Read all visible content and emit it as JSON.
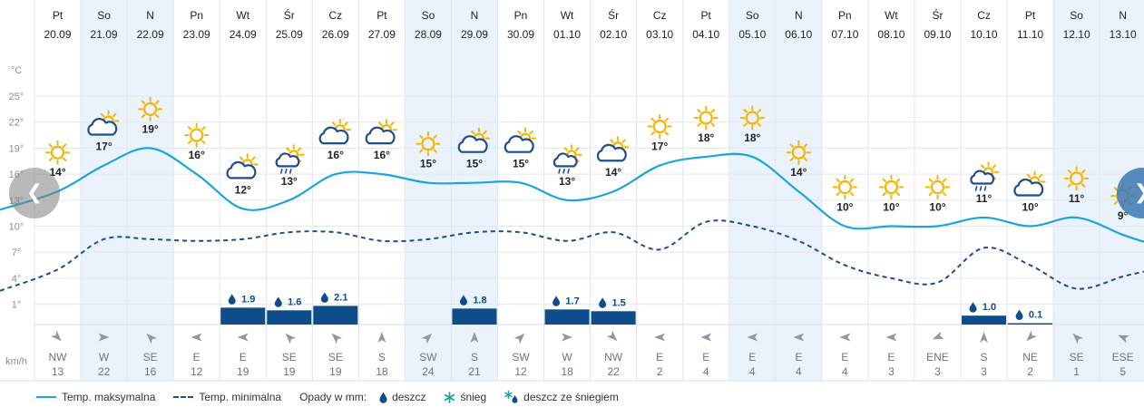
{
  "colors": {
    "max_line": "#1ba6d9",
    "min_line": "#1f4e8c",
    "rain_bar": "#0f4c8a",
    "weekend_bg": "#eaf3fc",
    "sun": "#f4b400",
    "cloud": "#1f4e8c",
    "wind_arrow": "#8f98a3"
  },
  "navigation": {
    "prev_icon": "chevron-left-icon",
    "next_icon": "chevron-right-icon"
  },
  "axis": {
    "unit_label": "°C",
    "ticks": [
      "25°",
      "22°",
      "19°",
      "16°",
      "13°",
      "10°",
      "7°",
      "4°",
      "1°"
    ],
    "tick_values": [
      25,
      22,
      19,
      16,
      13,
      10,
      7,
      4,
      1
    ],
    "ylim": [
      -1,
      28
    ],
    "wind_unit": "km/h"
  },
  "days": [
    {
      "dow": "Pt",
      "date": "20.09",
      "weekend": false,
      "icon": "sun-icon",
      "max_label": "14°",
      "wind_dir": "NW",
      "wind_speed": "13",
      "wind_deg": 315
    },
    {
      "dow": "So",
      "date": "21.09",
      "weekend": true,
      "icon": "partly-cloudy-icon",
      "max_label": "17°",
      "wind_dir": "W",
      "wind_speed": "22",
      "wind_deg": 270
    },
    {
      "dow": "N",
      "date": "22.09",
      "weekend": true,
      "icon": "sun-icon",
      "max_label": "19°",
      "wind_dir": "SE",
      "wind_speed": "16",
      "wind_deg": 135
    },
    {
      "dow": "Pn",
      "date": "23.09",
      "weekend": false,
      "icon": "sun-icon",
      "max_label": "16°",
      "wind_dir": "E",
      "wind_speed": "12",
      "wind_deg": 90
    },
    {
      "dow": "Wt",
      "date": "24.09",
      "weekend": false,
      "icon": "partly-cloudy-icon",
      "max_label": "12°",
      "wind_dir": "E",
      "wind_speed": "19",
      "wind_deg": 90
    },
    {
      "dow": "Śr",
      "date": "25.09",
      "weekend": false,
      "icon": "partly-cloudy-rain-icon",
      "max_label": "13°",
      "wind_dir": "SE",
      "wind_speed": "19",
      "wind_deg": 135
    },
    {
      "dow": "Cz",
      "date": "26.09",
      "weekend": false,
      "icon": "partly-cloudy-icon",
      "max_label": "16°",
      "wind_dir": "SE",
      "wind_speed": "19",
      "wind_deg": 135
    },
    {
      "dow": "Pt",
      "date": "27.09",
      "weekend": false,
      "icon": "partly-cloudy-icon",
      "max_label": "16°",
      "wind_dir": "S",
      "wind_speed": "18",
      "wind_deg": 180
    },
    {
      "dow": "So",
      "date": "28.09",
      "weekend": true,
      "icon": "sun-icon",
      "max_label": "15°",
      "wind_dir": "SW",
      "wind_speed": "24",
      "wind_deg": 225
    },
    {
      "dow": "N",
      "date": "29.09",
      "weekend": true,
      "icon": "partly-cloudy-icon",
      "max_label": "15°",
      "wind_dir": "S",
      "wind_speed": "21",
      "wind_deg": 180
    },
    {
      "dow": "Pn",
      "date": "30.09",
      "weekend": false,
      "icon": "partly-cloudy-icon",
      "max_label": "15°",
      "wind_dir": "SW",
      "wind_speed": "12",
      "wind_deg": 225
    },
    {
      "dow": "Wt",
      "date": "01.10",
      "weekend": false,
      "icon": "partly-cloudy-rain-icon",
      "max_label": "13°",
      "wind_dir": "W",
      "wind_speed": "18",
      "wind_deg": 270
    },
    {
      "dow": "Śr",
      "date": "02.10",
      "weekend": false,
      "icon": "partly-cloudy-icon",
      "max_label": "14°",
      "wind_dir": "NW",
      "wind_speed": "22",
      "wind_deg": 315
    },
    {
      "dow": "Cz",
      "date": "03.10",
      "weekend": false,
      "icon": "sun-icon",
      "max_label": "17°",
      "wind_dir": "E",
      "wind_speed": "2",
      "wind_deg": 90
    },
    {
      "dow": "Pt",
      "date": "04.10",
      "weekend": false,
      "icon": "sun-icon",
      "max_label": "18°",
      "wind_dir": "E",
      "wind_speed": "4",
      "wind_deg": 90
    },
    {
      "dow": "So",
      "date": "05.10",
      "weekend": true,
      "icon": "sun-icon",
      "max_label": "18°",
      "wind_dir": "E",
      "wind_speed": "4",
      "wind_deg": 90
    },
    {
      "dow": "N",
      "date": "06.10",
      "weekend": true,
      "icon": "sun-icon",
      "max_label": "14°",
      "wind_dir": "E",
      "wind_speed": "4",
      "wind_deg": 90
    },
    {
      "dow": "Pn",
      "date": "07.10",
      "weekend": false,
      "icon": "sun-icon",
      "max_label": "10°",
      "wind_dir": "E",
      "wind_speed": "4",
      "wind_deg": 90
    },
    {
      "dow": "Wt",
      "date": "08.10",
      "weekend": false,
      "icon": "sun-icon",
      "max_label": "10°",
      "wind_dir": "E",
      "wind_speed": "3",
      "wind_deg": 90
    },
    {
      "dow": "Śr",
      "date": "09.10",
      "weekend": false,
      "icon": "sun-icon",
      "max_label": "10°",
      "wind_dir": "ENE",
      "wind_speed": "3",
      "wind_deg": 67
    },
    {
      "dow": "Cz",
      "date": "10.10",
      "weekend": false,
      "icon": "partly-cloudy-rain-icon",
      "max_label": "11°",
      "wind_dir": "S",
      "wind_speed": "3",
      "wind_deg": 180
    },
    {
      "dow": "Pt",
      "date": "11.10",
      "weekend": false,
      "icon": "partly-cloudy-icon",
      "max_label": "10°",
      "wind_dir": "NE",
      "wind_speed": "2",
      "wind_deg": 45
    },
    {
      "dow": "So",
      "date": "12.10",
      "weekend": true,
      "icon": "sun-icon",
      "max_label": "11°",
      "wind_dir": "SE",
      "wind_speed": "1",
      "wind_deg": 135
    },
    {
      "dow": "N",
      "date": "13.10",
      "weekend": true,
      "icon": "sun-icon",
      "max_label": "9°",
      "wind_dir": "ESE",
      "wind_speed": "5",
      "wind_deg": 112
    }
  ],
  "legend": {
    "max_label": "Temp. maksymalna",
    "min_label": "Temp. minimalna",
    "precip_label": "Opady w mm:",
    "rain_label": "deszcz",
    "snow_label": "śnieg",
    "mixed_label": "deszcz ze śniegiem"
  },
  "chart_data": {
    "type": "line",
    "x": [
      "20.09",
      "21.09",
      "22.09",
      "23.09",
      "24.09",
      "25.09",
      "26.09",
      "27.09",
      "28.09",
      "29.09",
      "30.09",
      "01.10",
      "02.10",
      "03.10",
      "04.10",
      "05.10",
      "06.10",
      "07.10",
      "08.10",
      "09.10",
      "10.10",
      "11.10",
      "12.10",
      "13.10"
    ],
    "series": [
      {
        "name": "Temp. maksymalna",
        "values": [
          14,
          17,
          19,
          16,
          12,
          13,
          16,
          16,
          15,
          15,
          15,
          13,
          14,
          17,
          18,
          18,
          14,
          10,
          10,
          10,
          11,
          10,
          11,
          9
        ]
      },
      {
        "name": "Temp. minimalna",
        "values": [
          5,
          8.5,
          8.5,
          8.3,
          8.5,
          9.3,
          9.3,
          8.3,
          8.5,
          9.3,
          9.3,
          8.3,
          9.3,
          7.3,
          10.5,
          10,
          8.3,
          5.5,
          4,
          3.5,
          7.5,
          5.5,
          2.8,
          4.2
        ]
      }
    ],
    "precipitation": {
      "name": "Opady w mm",
      "values": [
        null,
        null,
        null,
        null,
        1.9,
        1.6,
        2.1,
        null,
        null,
        1.8,
        null,
        1.7,
        1.5,
        null,
        null,
        null,
        null,
        null,
        null,
        null,
        1.0,
        0.1,
        null,
        null
      ],
      "labels": [
        "",
        "",
        "",
        "",
        "1.9",
        "1.6",
        "2.1",
        "",
        "",
        "1.8",
        "",
        "1.7",
        "1.5",
        "",
        "",
        "",
        "",
        "",
        "",
        "",
        "1.0",
        "0.1",
        "",
        ""
      ]
    },
    "ylabel": "°C",
    "ylim": [
      -1,
      28
    ],
    "grid": true,
    "legend_position": "bottom-left"
  }
}
